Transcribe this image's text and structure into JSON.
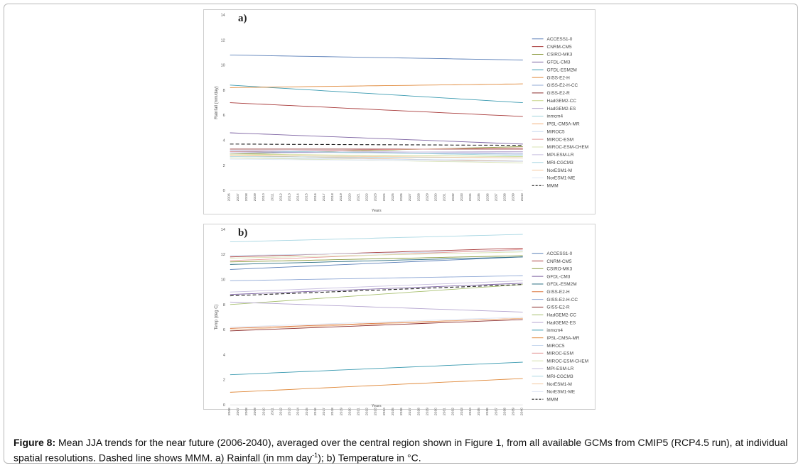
{
  "caption": {
    "label": "Figure 8:",
    "text_before_sup": "Mean JJA trends for the near future (2006-2040), averaged over the central region shown in Figure 1, from all available GCMs from CMIP5 (RCP4.5 run), at individual spatial resolutions. Dashed line shows MMM. a) Rainfall (in mm day",
    "sup": "-1",
    "text_after_sup": "); b) Temperature in °C."
  },
  "chart_data": [
    {
      "panel": "a)",
      "type": "line",
      "title": "",
      "xlabel": "Years",
      "ylabel": "Rainfall (mm/day)",
      "ylim": [
        0,
        14
      ],
      "yticks": [
        0,
        2,
        4,
        6,
        8,
        10,
        12,
        14
      ],
      "x": [
        2006,
        2007,
        2008,
        2009,
        2010,
        2011,
        2012,
        2013,
        2014,
        2015,
        2016,
        2017,
        2018,
        2019,
        2020,
        2021,
        2022,
        2023,
        2024,
        2025,
        2026,
        2027,
        2028,
        2029,
        2030,
        2031,
        2032,
        2033,
        2034,
        2035,
        2036,
        2037,
        2038,
        2039,
        2040
      ],
      "series": [
        {
          "name": "ACCESS1-0",
          "color": "#5a7fb8",
          "dashed": false,
          "start": 10.8,
          "end": 10.4
        },
        {
          "name": "CNRM-CM5",
          "color": "#a83a3a",
          "dashed": false,
          "start": 7.0,
          "end": 5.9
        },
        {
          "name": "CSIRO-MK3",
          "color": "#8a9a3c",
          "dashed": false,
          "start": 2.9,
          "end": 3.5
        },
        {
          "name": "GFDL-CM3",
          "color": "#7e64a3",
          "dashed": false,
          "start": 4.6,
          "end": 3.7
        },
        {
          "name": "GFDL-ESM2M",
          "color": "#3a9ab0",
          "dashed": false,
          "start": 8.4,
          "end": 7.0
        },
        {
          "name": "GISS-E2-H",
          "color": "#e08a3c",
          "dashed": false,
          "start": 8.2,
          "end": 8.5
        },
        {
          "name": "GISS-E2-H-CC",
          "color": "#8fa8d6",
          "dashed": false,
          "start": 3.1,
          "end": 2.9
        },
        {
          "name": "GISS-E2-R",
          "color": "#8b2c2c",
          "dashed": false,
          "start": 3.3,
          "end": 3.3
        },
        {
          "name": "HadGEM2-CC",
          "color": "#c8d68a",
          "dashed": false,
          "start": 2.9,
          "end": 2.7
        },
        {
          "name": "HadGEM2-ES",
          "color": "#b5a6d0",
          "dashed": false,
          "start": 3.0,
          "end": 3.1
        },
        {
          "name": "inmcm4",
          "color": "#9fd3dc",
          "dashed": false,
          "start": 3.2,
          "end": 2.8
        },
        {
          "name": "IPSL-CM5A-MR",
          "color": "#f3b07a",
          "dashed": false,
          "start": 2.8,
          "end": 2.3
        },
        {
          "name": "MIROC5",
          "color": "#c9d9ef",
          "dashed": false,
          "start": 2.6,
          "end": 2.4
        },
        {
          "name": "MIROC-ESM",
          "color": "#e69a9a",
          "dashed": false,
          "start": 3.1,
          "end": 3.4
        },
        {
          "name": "MIROC-ESM-CHEM",
          "color": "#d9e3b3",
          "dashed": false,
          "start": 2.6,
          "end": 2.2
        },
        {
          "name": "MPI-ESM-LR",
          "color": "#c8bfe0",
          "dashed": false,
          "start": 3.2,
          "end": 3.0
        },
        {
          "name": "MRI-CGCM3",
          "color": "#a9d7e3",
          "dashed": false,
          "start": 2.7,
          "end": 2.6
        },
        {
          "name": "NorESM1-M",
          "color": "#f5c9a0",
          "dashed": false,
          "start": 2.8,
          "end": 2.6
        },
        {
          "name": "NorESM1-ME",
          "color": "#dde6f4",
          "dashed": false,
          "start": 2.5,
          "end": 2.3
        },
        {
          "name": "MMM",
          "color": "#222222",
          "dashed": true,
          "start": 3.7,
          "end": 3.6
        }
      ]
    },
    {
      "panel": "b)",
      "type": "line",
      "title": "",
      "xlabel": "Years",
      "ylabel": "Temp (deg C)",
      "ylim": [
        0,
        14
      ],
      "yticks": [
        0,
        2,
        4,
        6,
        8,
        10,
        12,
        14
      ],
      "x": [
        2006,
        2007,
        2008,
        2009,
        2010,
        2011,
        2012,
        2013,
        2014,
        2015,
        2016,
        2017,
        2018,
        2019,
        2020,
        2021,
        2022,
        2023,
        2024,
        2025,
        2026,
        2027,
        2028,
        2029,
        2030,
        2031,
        2032,
        2033,
        2034,
        2035,
        2036,
        2037,
        2038,
        2039,
        2040
      ],
      "series": [
        {
          "name": "ACCESS1-0",
          "color": "#5a7fb8",
          "dashed": false,
          "start": 10.8,
          "end": 11.8
        },
        {
          "name": "CNRM-CM5",
          "color": "#a83a3a",
          "dashed": false,
          "start": 11.8,
          "end": 12.5
        },
        {
          "name": "CSIRO-MK3",
          "color": "#8a9a3c",
          "dashed": false,
          "start": 11.4,
          "end": 11.9
        },
        {
          "name": "GFDL-CM3",
          "color": "#7e64a3",
          "dashed": false,
          "start": 8.8,
          "end": 9.7
        },
        {
          "name": "GFDL-ESM2M",
          "color": "#2b6e82",
          "dashed": false,
          "start": 11.2,
          "end": 11.8
        },
        {
          "name": "GISS-E2-H",
          "color": "#d9733a",
          "dashed": false,
          "start": 6.1,
          "end": 6.9
        },
        {
          "name": "GISS-E2-H-CC",
          "color": "#8fa8d6",
          "dashed": false,
          "start": 9.9,
          "end": 10.3
        },
        {
          "name": "GISS-E2-R",
          "color": "#8b2c2c",
          "dashed": false,
          "start": 5.9,
          "end": 6.8
        },
        {
          "name": "HadGEM2-CC",
          "color": "#a8c070",
          "dashed": false,
          "start": 8.0,
          "end": 9.6
        },
        {
          "name": "HadGEM2-ES",
          "color": "#b5a6d0",
          "dashed": false,
          "start": 8.2,
          "end": 7.4
        },
        {
          "name": "inmcm4",
          "color": "#3a9ab0",
          "dashed": false,
          "start": 2.4,
          "end": 3.4
        },
        {
          "name": "IPSL-CM5A-MR",
          "color": "#e08a3c",
          "dashed": false,
          "start": 1.0,
          "end": 2.1
        },
        {
          "name": "MIROC5",
          "color": "#c9d9ef",
          "dashed": false,
          "start": 11.9,
          "end": 12.3
        },
        {
          "name": "MIROC-ESM",
          "color": "#e69a9a",
          "dashed": false,
          "start": 11.5,
          "end": 12.4
        },
        {
          "name": "MIROC-ESM-CHEM",
          "color": "#d9e3b3",
          "dashed": false,
          "start": 11.7,
          "end": 12.2
        },
        {
          "name": "MPI-ESM-LR",
          "color": "#c8bfe0",
          "dashed": false,
          "start": 9.0,
          "end": 9.9
        },
        {
          "name": "MRI-CGCM3",
          "color": "#a9d7e3",
          "dashed": false,
          "start": 13.0,
          "end": 13.6
        },
        {
          "name": "NorESM1-M",
          "color": "#f5c9a0",
          "dashed": false,
          "start": 6.0,
          "end": 6.9
        },
        {
          "name": "NorESM1-ME",
          "color": "#dde6f4",
          "dashed": false,
          "start": 6.2,
          "end": 7.0
        },
        {
          "name": "MMM",
          "color": "#222222",
          "dashed": true,
          "start": 8.7,
          "end": 9.6
        }
      ]
    }
  ]
}
